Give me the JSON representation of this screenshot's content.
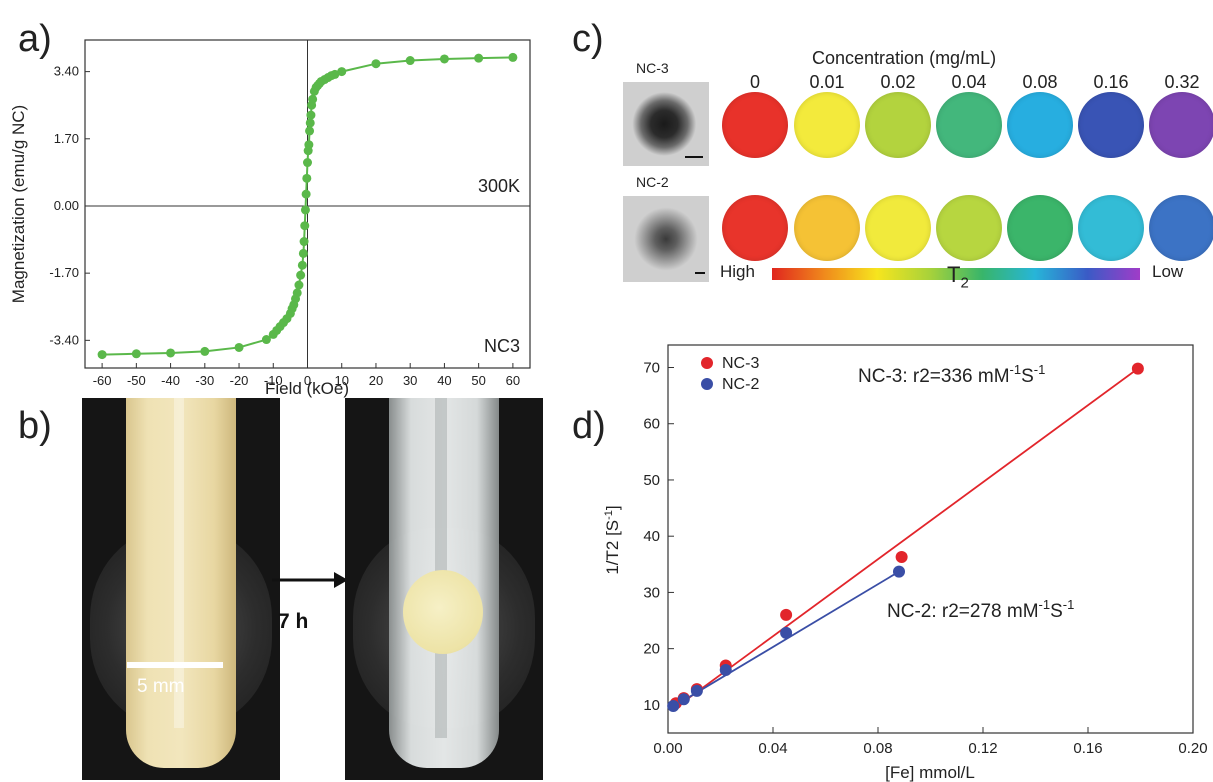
{
  "panels": {
    "a": "a)",
    "b": "b)",
    "c": "c)",
    "d": "d)"
  },
  "panel_a": {
    "xlabel": "Field (kOe)",
    "ylabel": "Magnetization (emu/g NC)",
    "annotation_temp": "300K",
    "annotation_sample": "NC3",
    "color": "#5ab84a"
  },
  "panel_b": {
    "scale_label": "5 mm",
    "arrow_label": "7 h"
  },
  "panel_c": {
    "title": "Concentration (mg/mL)",
    "concentrations": [
      "0",
      "0.01",
      "0.02",
      "0.04",
      "0.08",
      "0.16",
      "0.32"
    ],
    "samples": [
      "NC-3",
      "NC-2"
    ],
    "colorbar_high": "High",
    "colorbar_low": "Low",
    "colorbar_label": "T",
    "colorbar_label_sub": "2",
    "row1_colors": [
      "#e8322a",
      "#f3ea3c",
      "#b3d33e",
      "#43b77c",
      "#27aee0",
      "#3954b5",
      "#7d45b2"
    ],
    "row2_colors": [
      "#e8342b",
      "#f5c235",
      "#f1ea3c",
      "#b7d640",
      "#3bb56a",
      "#33bcd6",
      "#3c73c5"
    ]
  },
  "panel_d": {
    "xlabel": "[Fe] mmol/L",
    "ylabel": "1/T2 [S",
    "ylabel_sup": "-1",
    "ylabel_close": "]",
    "legend": [
      "NC-3",
      "NC-2"
    ],
    "ann_nc3_prefix": "NC-3: r2=336 mM",
    "ann_nc2_prefix": "NC-2: r2=278 mM",
    "ann_sup": "-1",
    "ann_S": "S",
    "colors": [
      "#e2252b",
      "#3a4ea6"
    ]
  },
  "chart_data": [
    {
      "type": "scatter",
      "xlabel": "Field (kOe)",
      "ylabel": "Magnetization (emu/g NC)",
      "xlim": [
        -65,
        65
      ],
      "ylim": [
        -4.1,
        4.2
      ],
      "xticks": [
        -60,
        -50,
        -40,
        -30,
        -20,
        -10,
        0,
        10,
        20,
        30,
        40,
        50,
        60
      ],
      "yticks": [
        -3.4,
        -1.7,
        0.0,
        1.7,
        3.4
      ],
      "yticklabels": [
        "-3.40",
        "-1.70",
        "0.00",
        "1.70",
        "3.40"
      ],
      "series": [
        {
          "x": [
            -60,
            -50,
            -40,
            -30,
            -20,
            -12,
            -10,
            -9,
            -8,
            -7,
            -6,
            -5,
            -4.5,
            -4,
            -3.5,
            -3,
            -2.5,
            -2,
            -1.5,
            -1.2,
            -1,
            -0.8,
            -0.6,
            -0.4,
            -0.2,
            0,
            0.2,
            0.4,
            0.6,
            0.8,
            1,
            1.2,
            1.5,
            2,
            2.5,
            3,
            3.5,
            4,
            5,
            6,
            7,
            8,
            10,
            20,
            30,
            40,
            50,
            60
          ],
          "y": [
            -3.76,
            -3.74,
            -3.72,
            -3.68,
            -3.58,
            -3.38,
            -3.25,
            -3.15,
            -3.05,
            -2.95,
            -2.85,
            -2.72,
            -2.6,
            -2.5,
            -2.35,
            -2.2,
            -2.0,
            -1.75,
            -1.5,
            -1.2,
            -0.9,
            -0.5,
            -0.1,
            0.3,
            0.7,
            1.1,
            1.4,
            1.55,
            1.9,
            2.1,
            2.3,
            2.55,
            2.7,
            2.9,
            3.0,
            3.05,
            3.1,
            3.15,
            3.2,
            3.25,
            3.3,
            3.33,
            3.4,
            3.6,
            3.68,
            3.72,
            3.74,
            3.76
          ]
        }
      ]
    },
    {
      "type": "scatter",
      "xlabel": "[Fe] mmol/L",
      "ylabel": "1/T2 [S-1]",
      "xlim": [
        0,
        0.2
      ],
      "ylim": [
        5,
        74
      ],
      "xticks": [
        0.0,
        0.04,
        0.08,
        0.12,
        0.16,
        0.2
      ],
      "xticklabels": [
        "0.00",
        "0.04",
        "0.08",
        "0.12",
        "0.16",
        "0.20"
      ],
      "yticks": [
        10,
        20,
        30,
        40,
        50,
        60,
        70
      ],
      "legend": "top-left",
      "series": [
        {
          "name": "NC-3",
          "x": [
            0.003,
            0.006,
            0.011,
            0.022,
            0.045,
            0.089,
            0.179
          ],
          "y": [
            10.3,
            11.2,
            12.8,
            17.0,
            26.0,
            36.3,
            69.8
          ],
          "fit": [
            [
              0.002,
              9.2
            ],
            [
              0.179,
              69.8
            ]
          ]
        },
        {
          "name": "NC-2",
          "x": [
            0.002,
            0.006,
            0.011,
            0.022,
            0.045,
            0.088
          ],
          "y": [
            9.8,
            11.0,
            12.5,
            16.2,
            22.8,
            33.7
          ],
          "fit": [
            [
              0.002,
              9.7
            ],
            [
              0.088,
              33.7
            ]
          ]
        }
      ]
    }
  ]
}
